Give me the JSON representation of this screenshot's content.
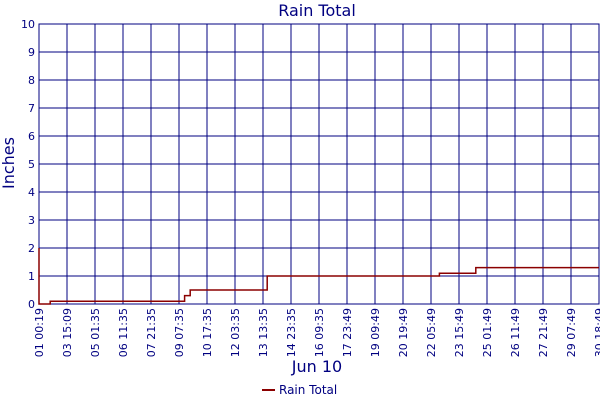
{
  "chart_data": {
    "type": "line",
    "title": "Rain Total",
    "xlabel": "Jun 10",
    "ylabel": "Inches",
    "ylim": [
      0,
      10
    ],
    "yticks": [
      "0",
      "1",
      "2",
      "3",
      "4",
      "5",
      "6",
      "7",
      "8",
      "9",
      "10"
    ],
    "grid": true,
    "legend_position": "bottom",
    "x_tick_labels": [
      "01 00:19",
      "03 15:09",
      "05 01:35",
      "06 11:35",
      "07 21:35",
      "09 07:35",
      "10 17:35",
      "12 03:35",
      "13 13:35",
      "14 23:35",
      "16 09:35",
      "17 23:49",
      "19 09:49",
      "20 19:49",
      "22 05:49",
      "23 15:49",
      "25 01:49",
      "26 11:49",
      "27 21:49",
      "29 07:49",
      "30 18:49"
    ],
    "series": [
      {
        "name": "Rain Total",
        "color": "#8b0000",
        "points": [
          [
            0.0,
            2.0
          ],
          [
            0.0,
            0.0
          ],
          [
            0.4,
            0.0
          ],
          [
            0.4,
            0.1
          ],
          [
            5.2,
            0.1
          ],
          [
            5.2,
            0.3
          ],
          [
            5.4,
            0.3
          ],
          [
            5.4,
            0.5
          ],
          [
            8.15,
            0.5
          ],
          [
            8.15,
            1.0
          ],
          [
            14.3,
            1.0
          ],
          [
            14.3,
            1.1
          ],
          [
            15.6,
            1.1
          ],
          [
            15.6,
            1.3
          ],
          [
            20.0,
            1.3
          ]
        ]
      }
    ]
  }
}
